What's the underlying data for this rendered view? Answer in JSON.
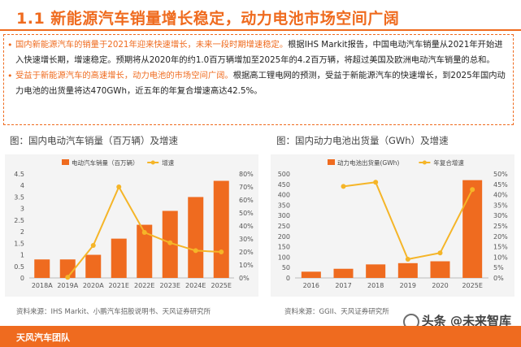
{
  "title": "1.1 新能源汽车销量增长稳定，动力电池市场空间广阔",
  "bullets": [
    {
      "highlight": "国内新能源汽车的销量于2021年迎来快速增长，未来一段时期增速稳定。",
      "text": "根据IHS Markit报告，中国电动汽车销量从2021年开始进入快速增长期，增速稳定。预期将从2020年的约1.0百万辆增加至2025年的4.2百万辆，将超过美国及欧洲电动汽车销量的总和。"
    },
    {
      "highlight": "受益于新能源汽车的高速增长，动力电池的市场空间广阔。",
      "text": "根据高工锂电网的预测，受益于新能源汽车的快速增长，到2025年国内动力电池的出货量将达470GWh，近五年的年复合增速高达42.5%。"
    }
  ],
  "charts": [
    {
      "title": "图：国内电动汽车销量（百万辆）及增速",
      "source": "资料来源：IHS Markit、小鹏汽车招股说明书、天风证券研究所"
    },
    {
      "title": "图：国内动力电池出货量（GWh）及增速",
      "source": "资料来源：GGII、天风证券研究所"
    }
  ],
  "footer": "天风汽车团队",
  "watermark": "头条 @未来智库",
  "colors": {
    "accent": "#ef6b1f",
    "line": "#f5b528"
  },
  "chart_data": [
    {
      "type": "bar",
      "title": "图：国内电动汽车销量（百万辆）及增速",
      "categories": [
        "2018A",
        "2019A",
        "2020A",
        "2021E",
        "2022E",
        "2023E",
        "2024E",
        "2025E"
      ],
      "series": [
        {
          "name": "电动汽车销量（百万辆）",
          "type": "bar",
          "axis": "left",
          "values": [
            0.8,
            0.8,
            1.0,
            1.7,
            2.3,
            2.9,
            3.5,
            4.2
          ]
        },
        {
          "name": "增速",
          "type": "line",
          "axis": "right",
          "values": [
            null,
            0.5,
            25.0,
            70.0,
            35.0,
            27.0,
            21.0,
            20.0
          ]
        }
      ],
      "y_left": {
        "min": 0,
        "max": 4.5,
        "ticks": [
          "0",
          "0.5",
          "1",
          "1.5",
          "2",
          "2.5",
          "3",
          "3.5",
          "4",
          "4.5"
        ]
      },
      "y_right": {
        "min": 0,
        "max": 80,
        "ticks": [
          "0%",
          "10%",
          "20%",
          "30%",
          "40%",
          "50%",
          "60%",
          "70%",
          "80%"
        ]
      },
      "legend": "top-left"
    },
    {
      "type": "bar",
      "title": "图：国内动力电池出货量（GWh）及增速",
      "categories": [
        "2016",
        "2017",
        "2018",
        "2019",
        "2020",
        "2025E"
      ],
      "series": [
        {
          "name": "动力电池出货量(GWh)",
          "type": "bar",
          "axis": "left",
          "values": [
            30,
            44,
            65,
            71,
            80,
            470
          ]
        },
        {
          "name": "年复合增速",
          "type": "line",
          "axis": "right",
          "values": [
            null,
            44.0,
            46.0,
            9.0,
            12.0,
            42.5
          ]
        }
      ],
      "y_left": {
        "min": 0,
        "max": 500,
        "ticks": [
          "0",
          "50",
          "100",
          "150",
          "200",
          "250",
          "300",
          "350",
          "400",
          "450",
          "500"
        ]
      },
      "y_right": {
        "min": 0,
        "max": 50,
        "ticks": [
          "0%",
          "5%",
          "10%",
          "15%",
          "20%",
          "25%",
          "30%",
          "35%",
          "40%",
          "45%",
          "50%"
        ]
      },
      "legend": "top-left"
    }
  ]
}
